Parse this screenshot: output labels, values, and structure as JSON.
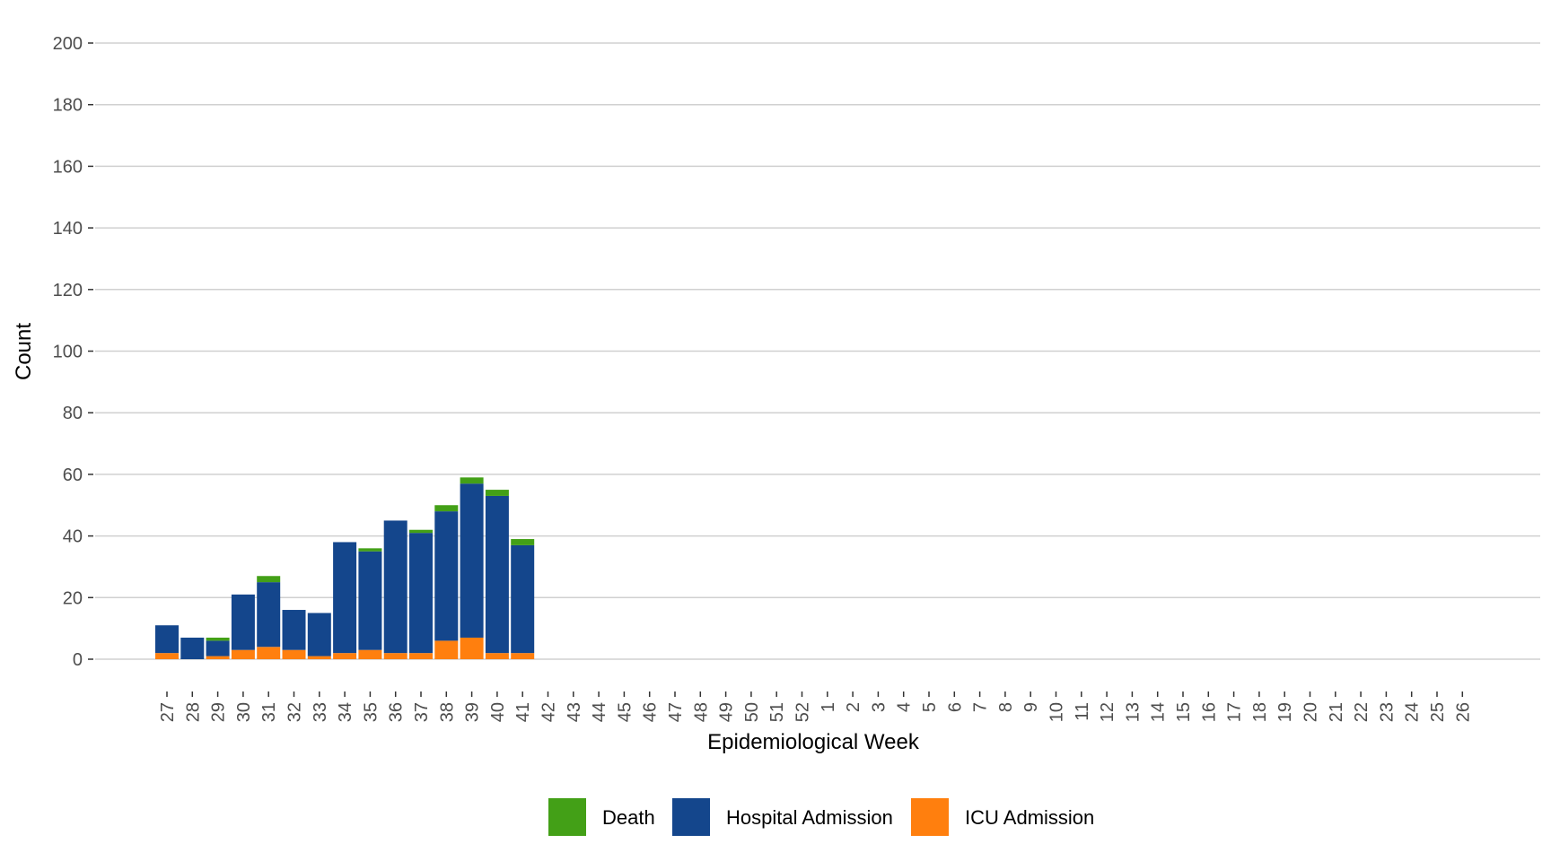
{
  "chart_data": {
    "type": "bar",
    "stacked": true,
    "xlabel": "Epidemiological Week",
    "ylabel": "Count",
    "ylim": [
      0,
      200
    ],
    "yticks": [
      0,
      20,
      40,
      60,
      80,
      100,
      120,
      140,
      160,
      180,
      200
    ],
    "grid": "horizontal major gridlines",
    "legend_position": "bottom",
    "categories": [
      "27",
      "28",
      "29",
      "30",
      "31",
      "32",
      "33",
      "34",
      "35",
      "36",
      "37",
      "38",
      "39",
      "40",
      "41",
      "42",
      "43",
      "44",
      "45",
      "46",
      "47",
      "48",
      "49",
      "50",
      "51",
      "52",
      "1",
      "2",
      "3",
      "4",
      "5",
      "6",
      "7",
      "8",
      "9",
      "10",
      "11",
      "12",
      "13",
      "14",
      "15",
      "16",
      "17",
      "18",
      "19",
      "20",
      "21",
      "22",
      "23",
      "24",
      "25",
      "26"
    ],
    "series": [
      {
        "name": "ICU Admission",
        "color": "#ff7f0e",
        "values": [
          2,
          0,
          1,
          3,
          4,
          3,
          1,
          2,
          3,
          2,
          2,
          6,
          7,
          2,
          2,
          0,
          0,
          0,
          0,
          0,
          0,
          0,
          0,
          0,
          0,
          0,
          0,
          0,
          0,
          0,
          0,
          0,
          0,
          0,
          0,
          0,
          0,
          0,
          0,
          0,
          0,
          0,
          0,
          0,
          0,
          0,
          0,
          0,
          0,
          0,
          0,
          0
        ]
      },
      {
        "name": "Hospital Admission",
        "color": "#14468c",
        "values": [
          9,
          7,
          5,
          18,
          21,
          13,
          14,
          36,
          32,
          43,
          39,
          42,
          50,
          51,
          35,
          0,
          0,
          0,
          0,
          0,
          0,
          0,
          0,
          0,
          0,
          0,
          0,
          0,
          0,
          0,
          0,
          0,
          0,
          0,
          0,
          0,
          0,
          0,
          0,
          0,
          0,
          0,
          0,
          0,
          0,
          0,
          0,
          0,
          0,
          0,
          0,
          0
        ]
      },
      {
        "name": "Death",
        "color": "#43a017",
        "values": [
          0,
          0,
          1,
          0,
          2,
          0,
          0,
          0,
          1,
          0,
          1,
          2,
          2,
          2,
          2,
          0,
          0,
          0,
          0,
          0,
          0,
          0,
          0,
          0,
          0,
          0,
          0,
          0,
          0,
          0,
          0,
          0,
          0,
          0,
          0,
          0,
          0,
          0,
          0,
          0,
          0,
          0,
          0,
          0,
          0,
          0,
          0,
          0,
          0,
          0,
          0,
          0
        ]
      }
    ],
    "legend_order": [
      "Death",
      "Hospital Admission",
      "ICU Admission"
    ]
  }
}
